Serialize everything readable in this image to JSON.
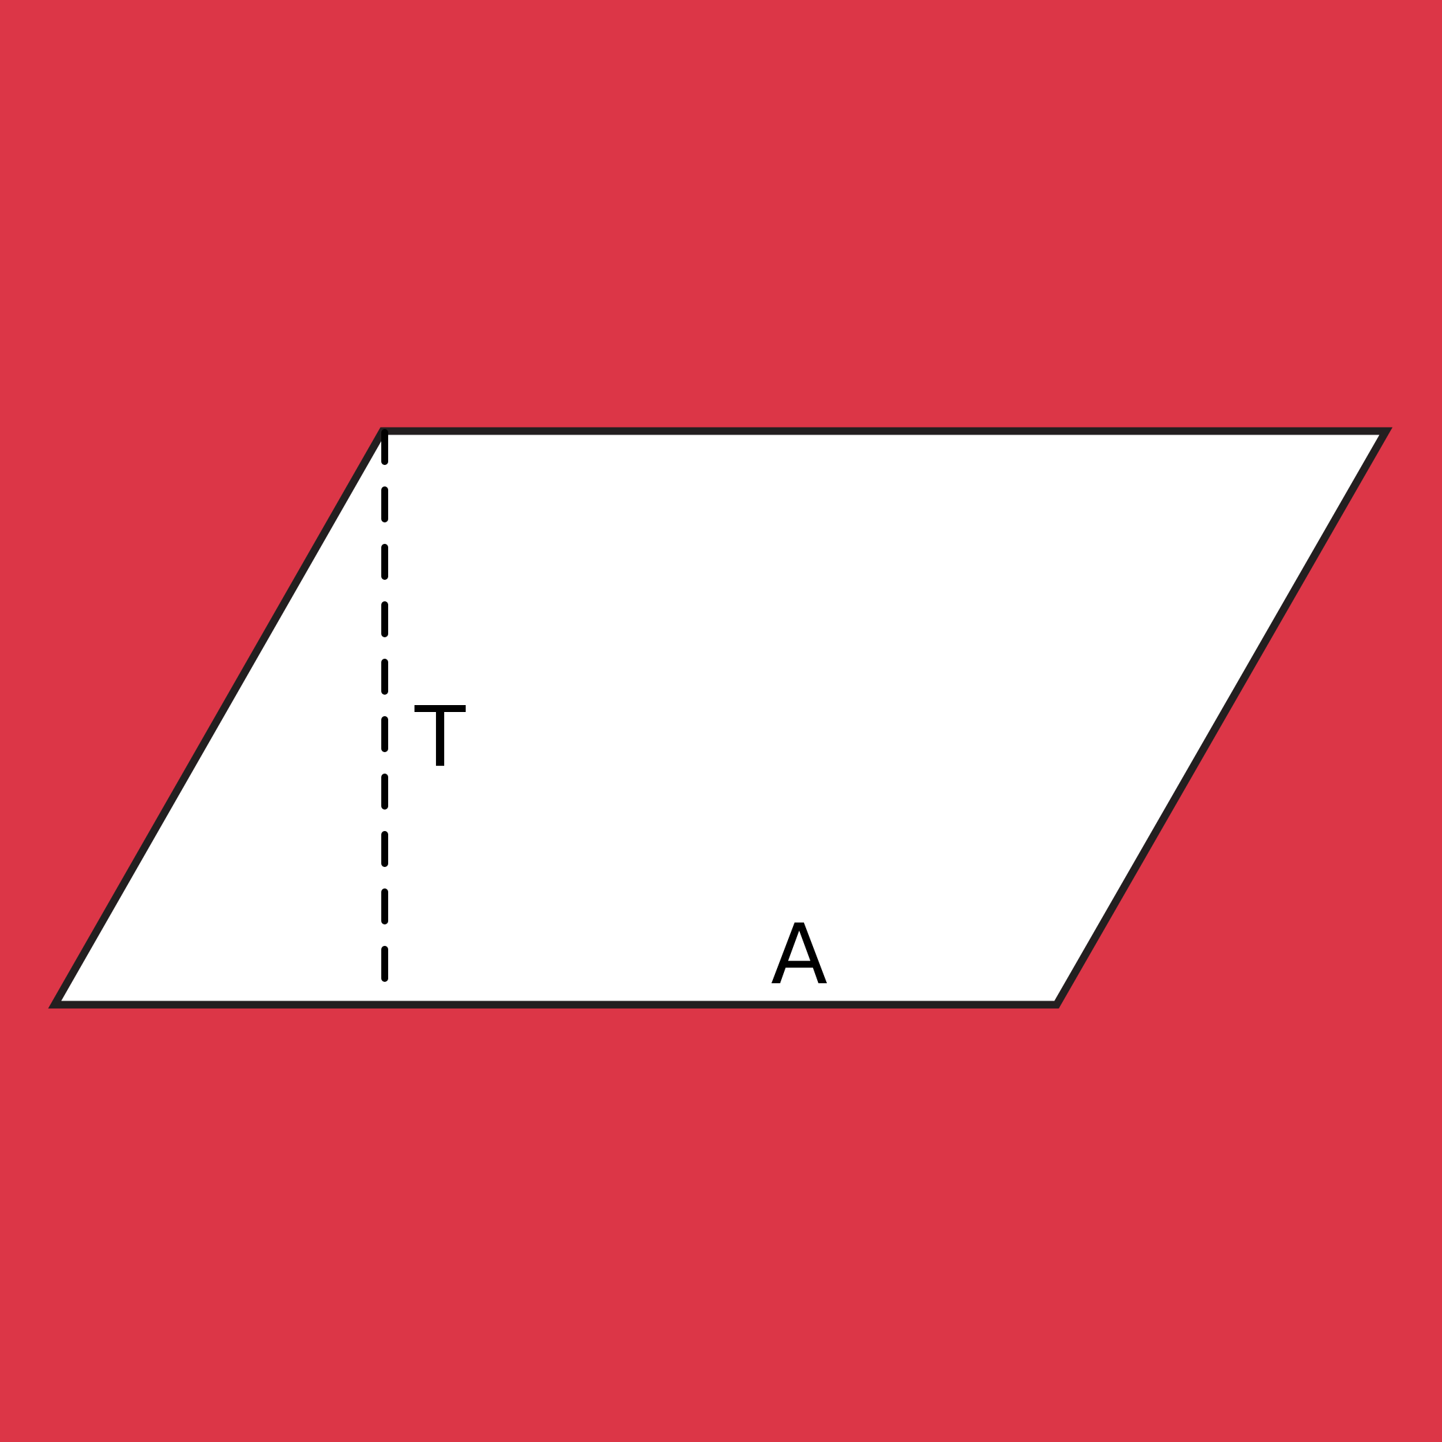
{
  "figure": {
    "background_color": "#dc3647",
    "shape_fill": "#ffffff",
    "stroke_color": "#231f20",
    "labels": {
      "height": "T",
      "base": "A"
    }
  }
}
